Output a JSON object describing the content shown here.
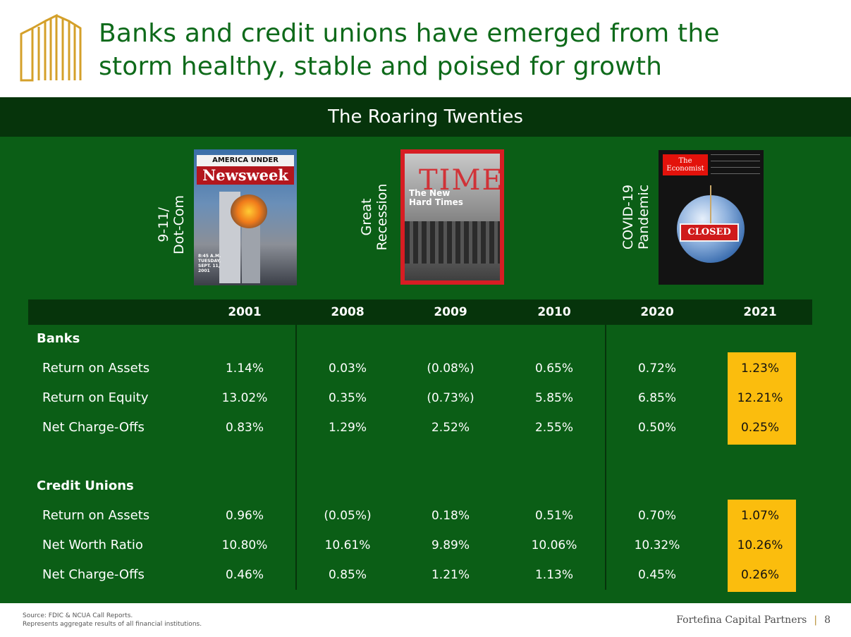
{
  "header": {
    "title_line1": "Banks and credit unions have emerged from the",
    "title_line2": "storm healthy, stable and poised for growth",
    "logo_icon": "building-outline-logo",
    "colors": {
      "title": "#0e6a1a",
      "logo": "#d4a02a"
    }
  },
  "banner": {
    "title": "The Roaring Twenties"
  },
  "covers": [
    {
      "label_lines": [
        "9-11/",
        "Dot-Com"
      ],
      "magazine": "Newsweek",
      "band": "AMERICA UNDER ATTACK",
      "small": "8:45 A.M. TUESDAY, SEPT. 11, 2001"
    },
    {
      "label_lines": [
        "Great",
        "Recession"
      ],
      "magazine": "TIME",
      "headline_lines": [
        "The New",
        "Hard Times"
      ]
    },
    {
      "label_lines": [
        "COVID-19",
        "Pandemic"
      ],
      "magazine_lines": [
        "The",
        "Economist"
      ],
      "sign": "CLOSED"
    }
  ],
  "table": {
    "years": [
      "2001",
      "2008",
      "2009",
      "2010",
      "2020",
      "2021"
    ],
    "banks": {
      "title": "Banks",
      "rows": [
        {
          "label": "Return on Assets",
          "values": [
            "1.14%",
            "0.03%",
            "(0.08%)",
            "0.65%",
            "0.72%",
            "1.23%"
          ]
        },
        {
          "label": "Return on Equity",
          "values": [
            "13.02%",
            "0.35%",
            "(0.73%)",
            "5.85%",
            "6.85%",
            "12.21%"
          ]
        },
        {
          "label": "Net Charge-Offs",
          "values": [
            "0.83%",
            "1.29%",
            "2.52%",
            "2.55%",
            "0.50%",
            "0.25%"
          ]
        }
      ]
    },
    "credit_unions": {
      "title": "Credit Unions",
      "rows": [
        {
          "label": "Return on Assets",
          "values": [
            "0.96%",
            "(0.05%)",
            "0.18%",
            "0.51%",
            "0.70%",
            "1.07%"
          ]
        },
        {
          "label": "Net Worth Ratio",
          "values": [
            "10.80%",
            "10.61%",
            "9.89%",
            "10.06%",
            "10.32%",
            "10.26%"
          ]
        },
        {
          "label": "Net Charge-Offs",
          "values": [
            "0.46%",
            "0.85%",
            "1.21%",
            "1.13%",
            "0.45%",
            "0.26%"
          ]
        }
      ]
    },
    "colors": {
      "panel": "#0b5e16",
      "dark": "#06340b",
      "highlight": "#fbbd0d"
    }
  },
  "footer": {
    "source_line1": "Source: FDIC & NCUA Call Reports.",
    "source_line2": "Represents aggregate results of all financial institutions.",
    "brand": "Fortefina Capital Partners",
    "separator": "|",
    "page": "8"
  }
}
